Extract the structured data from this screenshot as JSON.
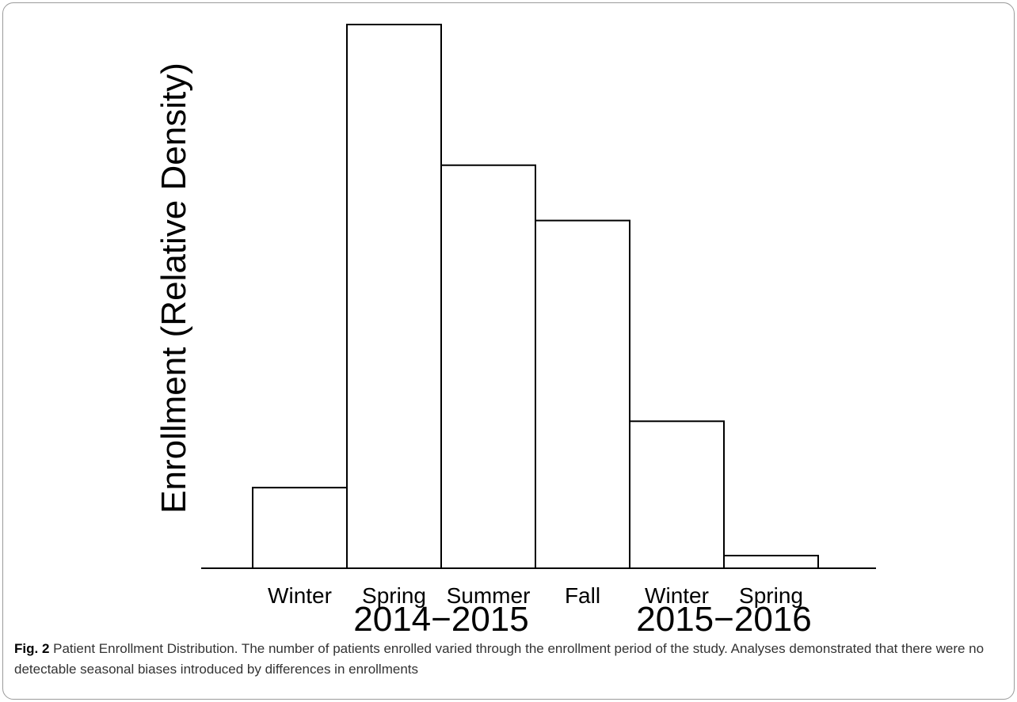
{
  "chart_data": {
    "type": "bar",
    "ylabel": "Enrollment (Relative Density)",
    "categories": [
      "Winter",
      "Spring",
      "Summer",
      "Fall",
      "Winter",
      "Spring"
    ],
    "groups": [
      {
        "label": "2014−2015",
        "categories": [
          0,
          1,
          2,
          3
        ]
      },
      {
        "label": "2015−2016",
        "categories": [
          4,
          5
        ]
      }
    ],
    "values": [
      102,
      688,
      510,
      440,
      186,
      16
    ],
    "ylim": [
      0,
      690
    ],
    "grid": false,
    "legend": "none",
    "bar_fill": "#ffffff",
    "bar_stroke": "#000000"
  },
  "caption": {
    "label": "Fig. 2",
    "text": " Patient Enrollment Distribution. The number of patients enrolled varied through the enrollment period of the study. Analyses demonstrated that there were no detectable seasonal biases introduced by differences in enrollments"
  }
}
